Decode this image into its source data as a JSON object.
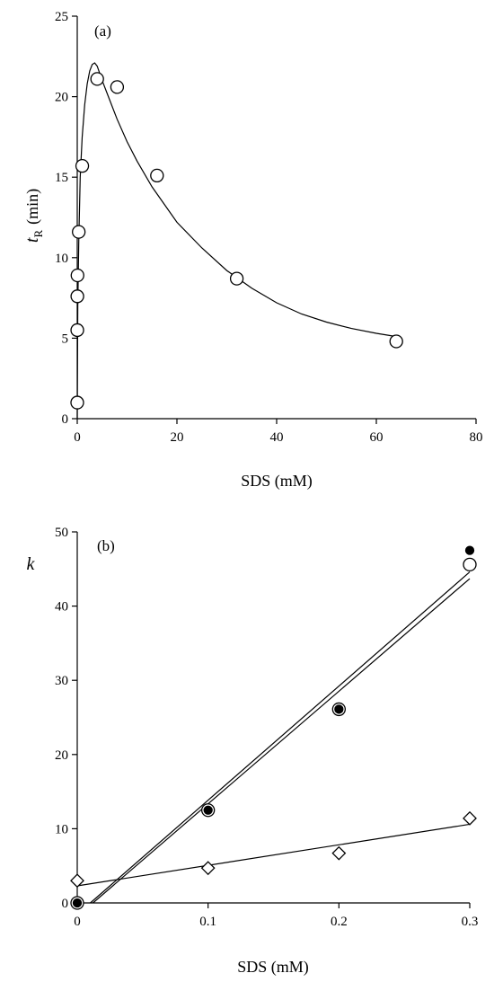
{
  "chart_data": [
    {
      "type": "scatter",
      "panel_label": "(a)",
      "xlabel": "SDS (mM)",
      "ylabel_main": "t",
      "ylabel_sub": "R",
      "ylabel_unit": "(min)",
      "xlim": [
        0,
        80
      ],
      "ylim": [
        0,
        25
      ],
      "xticks": [
        0,
        20,
        40,
        60,
        80
      ],
      "yticks": [
        0,
        5,
        10,
        15,
        20,
        25
      ],
      "grid": false,
      "series": [
        {
          "marker": "open-circle",
          "x": [
            0,
            0.01,
            0.02,
            0.05,
            0.3,
            1,
            4,
            8,
            16,
            32,
            64
          ],
          "y": [
            1.0,
            5.5,
            7.6,
            8.9,
            11.6,
            15.7,
            21.1,
            20.6,
            15.1,
            8.7,
            4.8
          ]
        }
      ],
      "fit_curve": {
        "x": [
          0,
          0.1,
          0.3,
          0.6,
          1,
          1.5,
          2,
          2.5,
          3,
          3.5,
          4,
          5,
          6,
          8,
          10,
          12,
          15,
          20,
          25,
          30,
          35,
          40,
          45,
          50,
          55,
          60,
          64
        ],
        "y": [
          0,
          7,
          11,
          15,
          17.5,
          19.5,
          20.8,
          21.6,
          22.0,
          22.1,
          21.9,
          21.0,
          20.2,
          18.6,
          17.2,
          16.0,
          14.4,
          12.2,
          10.6,
          9.2,
          8.1,
          7.2,
          6.5,
          6.0,
          5.6,
          5.3,
          5.1
        ]
      }
    },
    {
      "type": "scatter",
      "panel_label": "(b)",
      "xlabel": "SDS (mM)",
      "ylabel_main": "k",
      "xlim": [
        0,
        0.3
      ],
      "ylim": [
        0,
        50
      ],
      "xticks": [
        0,
        0.1,
        0.2,
        0.3
      ],
      "xtick_labels": [
        "0",
        "0.1",
        "0.2",
        "0.3"
      ],
      "yticks": [
        0,
        10,
        20,
        30,
        40,
        50
      ],
      "grid": false,
      "series": [
        {
          "marker": "open-circle",
          "x": [
            0,
            0.1,
            0.2,
            0.3
          ],
          "y": [
            0,
            12.5,
            26.1,
            45.6
          ]
        },
        {
          "marker": "filled-circle",
          "x": [
            0,
            0.1,
            0.2,
            0.3
          ],
          "y": [
            0,
            12.5,
            26.1,
            47.5
          ]
        },
        {
          "marker": "open-diamond",
          "x": [
            0,
            0.1,
            0.2,
            0.3
          ],
          "y": [
            3,
            4.7,
            6.7,
            11.4
          ]
        }
      ],
      "fit_lines": [
        {
          "x": [
            0.01,
            0.3
          ],
          "y": [
            0,
            44.6
          ]
        },
        {
          "x": [
            0.012,
            0.3
          ],
          "y": [
            0,
            43.7
          ]
        },
        {
          "x": [
            0,
            0.3
          ],
          "y": [
            2.3,
            10.6
          ]
        }
      ]
    }
  ]
}
